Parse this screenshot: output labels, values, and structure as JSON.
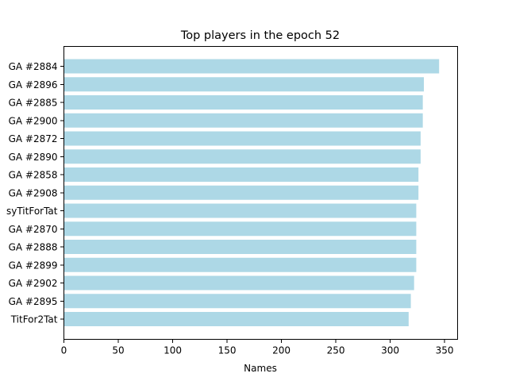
{
  "chart_data": {
    "type": "bar",
    "orientation": "horizontal",
    "title": "Top players in the epoch 52",
    "xlabel": "Names",
    "ylabel": "",
    "bar_color": "#add8e6",
    "xlim": [
      0,
      362
    ],
    "xticks": [
      0,
      50,
      100,
      150,
      200,
      250,
      300,
      350
    ],
    "categories": [
      "GA #2884",
      "GA #2896",
      "GA #2885",
      "GA #2900",
      "GA #2872",
      "GA #2890",
      "GA #2858",
      "GA #2908",
      "syTitForTat",
      "GA #2870",
      "GA #2888",
      "GA #2899",
      "GA #2902",
      "GA #2895",
      "TitFor2Tat"
    ],
    "values": [
      345,
      331,
      330,
      330,
      328,
      328,
      326,
      326,
      324,
      324,
      324,
      324,
      322,
      319,
      317
    ]
  }
}
